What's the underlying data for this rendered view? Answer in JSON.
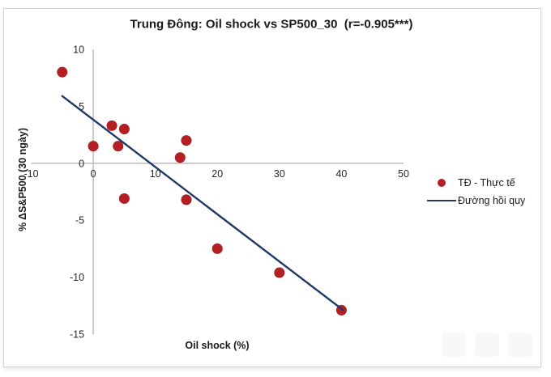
{
  "colors": {
    "dot": "#b51f24",
    "dot_edge": "#941a1f",
    "regression_line": "#1f3864",
    "axis_line": "#bfbfbf",
    "text": "#1a1a1a",
    "tick_text": "#262626",
    "panel_border": "#d4d4d4",
    "watermark": "#f8f8f8"
  },
  "chart_data": {
    "type": "scatter",
    "title": "Trung Đông: Oil shock vs SP500_30  (r=-0.905***)",
    "xlabel": "Oil shock (%)",
    "ylabel": "% ΔS&P500 (30 ngày)",
    "xlim": [
      -10,
      50
    ],
    "ylim": [
      -15,
      10
    ],
    "x_ticks": [
      -10,
      0,
      10,
      20,
      30,
      40,
      50
    ],
    "y_ticks": [
      -15,
      -10,
      -5,
      0,
      5,
      10
    ],
    "grid": false,
    "legend_position": "right",
    "series": [
      {
        "name": "TĐ - Thực tế",
        "type": "scatter",
        "color": "#b51f24",
        "points": [
          [
            -5,
            8
          ],
          [
            0,
            1.5
          ],
          [
            3,
            3.3
          ],
          [
            5,
            3
          ],
          [
            4,
            1.5
          ],
          [
            14,
            0.5
          ],
          [
            15,
            2
          ],
          [
            5,
            -3.1
          ],
          [
            15,
            -3.2
          ],
          [
            20,
            -7.5
          ],
          [
            30,
            -9.6
          ],
          [
            40,
            -12.9
          ]
        ]
      },
      {
        "name": "Đường hồi quy",
        "type": "line",
        "color": "#1f3864",
        "points": [
          [
            -5,
            5.9
          ],
          [
            40.3,
            -12.9
          ]
        ]
      }
    ]
  }
}
